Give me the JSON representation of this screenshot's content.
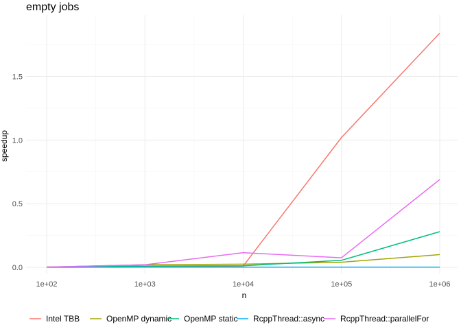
{
  "chart_data": {
    "type": "line",
    "title": "empty jobs",
    "xlabel": "n",
    "ylabel": "speedup",
    "x_scale": "log10",
    "x": [
      100,
      1000,
      10000,
      100000,
      1000000
    ],
    "x_tick_labels": [
      "1e+02",
      "1e+03",
      "1e+04",
      "1e+05",
      "1e+06"
    ],
    "xlim": [
      100,
      1000000
    ],
    "ylim": [
      0,
      1.85
    ],
    "y_ticks": [
      0,
      0.5,
      1.0,
      1.5
    ],
    "y_tick_labels": [
      "0.0",
      "0.5",
      "1.0",
      "1.5"
    ],
    "grid": true,
    "legend_position": "bottom",
    "series": [
      {
        "name": "Intel TBB",
        "color": "#F8766D",
        "values": [
          0.002,
          0.005,
          0.01,
          1.02,
          1.84
        ]
      },
      {
        "name": "OpenMP dynamic",
        "color": "#A3A500",
        "values": [
          0.002,
          0.02,
          0.025,
          0.04,
          0.1
        ]
      },
      {
        "name": "OpenMP static",
        "color": "#00BF7D",
        "values": [
          0.001,
          0.01,
          0.012,
          0.055,
          0.28
        ]
      },
      {
        "name": "RcppThread::async",
        "color": "#00B0F6",
        "values": [
          0.0,
          0.001,
          0.001,
          0.001,
          0.001
        ]
      },
      {
        "name": "RcppThread::parallelFor",
        "color": "#E76BF3",
        "values": [
          0.002,
          0.02,
          0.115,
          0.075,
          0.69
        ]
      }
    ]
  }
}
